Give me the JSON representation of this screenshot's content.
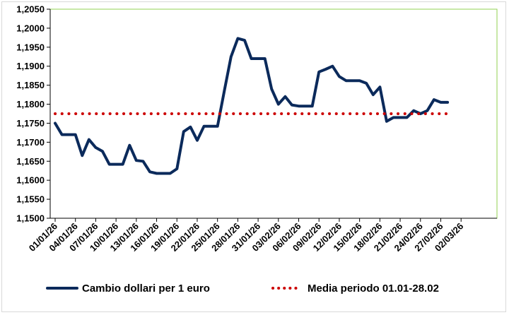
{
  "chart_data": {
    "type": "line",
    "title": "",
    "xlabel": "",
    "ylabel": "",
    "ylim": [
      1.15,
      1.205
    ],
    "y_ticks": [
      "1,1500",
      "1,1550",
      "1,1600",
      "1,1650",
      "1,1700",
      "1,1750",
      "1,1800",
      "1,1850",
      "1,1900",
      "1,1950",
      "1,2000",
      "1,2050"
    ],
    "x_ticks": [
      "01/01/26",
      "04/01/26",
      "07/01/26",
      "10/01/26",
      "13/01/26",
      "16/01/26",
      "19/01/26",
      "22/01/26",
      "25/01/26",
      "28/01/26",
      "31/01/26",
      "03/02/26",
      "06/02/26",
      "09/02/26",
      "12/02/26",
      "15/02/26",
      "18/02/26",
      "21/02/26",
      "24/02/26",
      "27/02/26",
      "02/03/26"
    ],
    "grid": "plot-area border only",
    "legend_placement": "bottom",
    "series": [
      {
        "name": "Cambio dollari per 1 euro",
        "color": "#0b2a5b",
        "style": "solid",
        "points": [
          [
            "01/01/26",
            1.175
          ],
          [
            "02/01/26",
            1.172
          ],
          [
            "03/01/26",
            1.172
          ],
          [
            "04/01/26",
            1.172
          ],
          [
            "05/01/26",
            1.1665
          ],
          [
            "06/01/26",
            1.1707
          ],
          [
            "07/01/26",
            1.1686
          ],
          [
            "08/01/26",
            1.1676
          ],
          [
            "09/01/26",
            1.1642
          ],
          [
            "10/01/26",
            1.1642
          ],
          [
            "11/01/26",
            1.1642
          ],
          [
            "12/01/26",
            1.1692
          ],
          [
            "13/01/26",
            1.1652
          ],
          [
            "14/01/26",
            1.165
          ],
          [
            "15/01/26",
            1.1622
          ],
          [
            "16/01/26",
            1.1618
          ],
          [
            "17/01/26",
            1.1618
          ],
          [
            "18/01/26",
            1.1618
          ],
          [
            "19/01/26",
            1.163
          ],
          [
            "20/01/26",
            1.1728
          ],
          [
            "21/01/26",
            1.174
          ],
          [
            "22/01/26",
            1.1705
          ],
          [
            "23/01/26",
            1.1742
          ],
          [
            "24/01/26",
            1.1742
          ],
          [
            "25/01/26",
            1.1742
          ],
          [
            "26/01/26",
            1.1835
          ],
          [
            "27/01/26",
            1.1925
          ],
          [
            "28/01/26",
            1.1973
          ],
          [
            "29/01/26",
            1.1968
          ],
          [
            "30/01/26",
            1.192
          ],
          [
            "31/01/26",
            1.192
          ],
          [
            "01/02/26",
            1.192
          ],
          [
            "02/02/26",
            1.184
          ],
          [
            "03/02/26",
            1.18
          ],
          [
            "04/02/26",
            1.182
          ],
          [
            "05/02/26",
            1.1798
          ],
          [
            "06/02/26",
            1.1795
          ],
          [
            "07/02/26",
            1.1795
          ],
          [
            "08/02/26",
            1.1795
          ],
          [
            "09/02/26",
            1.1885
          ],
          [
            "10/02/26",
            1.1892
          ],
          [
            "11/02/26",
            1.19
          ],
          [
            "12/02/26",
            1.1873
          ],
          [
            "13/02/26",
            1.1862
          ],
          [
            "14/02/26",
            1.1862
          ],
          [
            "15/02/26",
            1.1862
          ],
          [
            "16/02/26",
            1.1855
          ],
          [
            "17/02/26",
            1.1825
          ],
          [
            "18/02/26",
            1.1845
          ],
          [
            "19/02/26",
            1.1755
          ],
          [
            "20/02/26",
            1.1765
          ],
          [
            "21/02/26",
            1.1765
          ],
          [
            "22/02/26",
            1.1765
          ],
          [
            "23/02/26",
            1.1783
          ],
          [
            "24/02/26",
            1.1775
          ],
          [
            "25/02/26",
            1.1783
          ],
          [
            "26/02/26",
            1.1812
          ],
          [
            "27/02/26",
            1.1805
          ],
          [
            "28/02/26",
            1.1805
          ]
        ]
      },
      {
        "name": "Media periodo 01.01-28.02",
        "color": "#cc0000",
        "style": "dotted",
        "points": [
          [
            "01/01/26",
            1.1775
          ],
          [
            "28/02/26",
            1.1775
          ]
        ]
      }
    ]
  },
  "colors": {
    "plot_border": "#92d050",
    "axis": "#000000"
  }
}
